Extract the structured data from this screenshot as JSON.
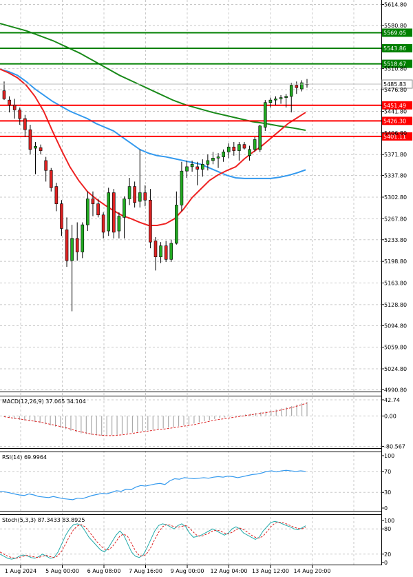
{
  "chart_data": [
    {
      "type": "candlestick",
      "x_ticks": [
        "1 Aug 2024",
        "5 Aug 00:00",
        "6 Aug 08:00",
        "7 Aug 16:00",
        "9 Aug 00:00",
        "12 Aug 04:00",
        "13 Aug 12:00",
        "14 Aug 20:00"
      ],
      "y_ticks": [
        5614.8,
        5580.8,
        5510.8,
        5476.8,
        5441.8,
        5406.8,
        5371.8,
        5337.8,
        5302.8,
        5267.8,
        5233.8,
        5198.8,
        5163.8,
        5128.8,
        5094.8,
        5059.8,
        5024.8,
        4990.8
      ],
      "ylim": [
        4988,
        5622
      ],
      "grid": true,
      "last_price": 5485.83,
      "levels": [
        {
          "value": 5569.05,
          "label": "5569.05",
          "color": "#008000"
        },
        {
          "value": 5543.86,
          "label": "5543.86",
          "color": "#008000"
        },
        {
          "value": 5518.67,
          "label": "5518.67",
          "color": "#008000"
        },
        {
          "value": 5451.49,
          "label": "5451.49",
          "color": "#ff0000"
        },
        {
          "value": 5426.3,
          "label": "5426.30",
          "color": "#ff0000"
        },
        {
          "value": 5401.11,
          "label": "5401.11",
          "color": "#ff0000"
        }
      ],
      "candles": [
        [
          5475,
          5490,
          5460,
          5462
        ],
        [
          5460,
          5466,
          5440,
          5452
        ],
        [
          5452,
          5462,
          5430,
          5444
        ],
        [
          5444,
          5448,
          5420,
          5430
        ],
        [
          5430,
          5436,
          5400,
          5412
        ],
        [
          5412,
          5420,
          5372,
          5380
        ],
        [
          5382,
          5392,
          5340,
          5385
        ],
        [
          5383,
          5388,
          5372,
          5378
        ],
        [
          5362,
          5368,
          5328,
          5346
        ],
        [
          5346,
          5350,
          5312,
          5318
        ],
        [
          5320,
          5326,
          5280,
          5292
        ],
        [
          5292,
          5298,
          5240,
          5252
        ],
        [
          5250,
          5270,
          5190,
          5200
        ],
        [
          5200,
          5258,
          5118,
          5236
        ],
        [
          5236,
          5262,
          5200,
          5214
        ],
        [
          5214,
          5262,
          5204,
          5258
        ],
        [
          5258,
          5312,
          5248,
          5300
        ],
        [
          5300,
          5312,
          5272,
          5292
        ],
        [
          5292,
          5300,
          5270,
          5274
        ],
        [
          5274,
          5278,
          5236,
          5246
        ],
        [
          5248,
          5318,
          5240,
          5310
        ],
        [
          5310,
          5316,
          5236,
          5246
        ],
        [
          5248,
          5278,
          5236,
          5272
        ],
        [
          5270,
          5304,
          5236,
          5300
        ],
        [
          5300,
          5334,
          5290,
          5320
        ],
        [
          5320,
          5328,
          5286,
          5294
        ],
        [
          5296,
          5380,
          5286,
          5310
        ],
        [
          5310,
          5322,
          5288,
          5298
        ],
        [
          5298,
          5316,
          5220,
          5230
        ],
        [
          5232,
          5238,
          5184,
          5206
        ],
        [
          5206,
          5230,
          5196,
          5224
        ],
        [
          5224,
          5232,
          5198,
          5202
        ],
        [
          5202,
          5234,
          5198,
          5228
        ],
        [
          5228,
          5312,
          5226,
          5290
        ],
        [
          5290,
          5360,
          5280,
          5345
        ],
        [
          5345,
          5362,
          5334,
          5352
        ],
        [
          5352,
          5362,
          5344,
          5356
        ],
        [
          5352,
          5360,
          5322,
          5348
        ],
        [
          5348,
          5364,
          5336,
          5356
        ],
        [
          5356,
          5372,
          5346,
          5362
        ],
        [
          5362,
          5376,
          5356,
          5366
        ],
        [
          5366,
          5374,
          5350,
          5368
        ],
        [
          5368,
          5380,
          5360,
          5376
        ],
        [
          5376,
          5390,
          5366,
          5384
        ],
        [
          5384,
          5392,
          5370,
          5378
        ],
        [
          5378,
          5392,
          5362,
          5388
        ],
        [
          5388,
          5392,
          5380,
          5382
        ],
        [
          5370,
          5386,
          5362,
          5380
        ],
        [
          5380,
          5400,
          5376,
          5396
        ],
        [
          5380,
          5420,
          5376,
          5418
        ],
        [
          5416,
          5460,
          5410,
          5456
        ],
        [
          5456,
          5464,
          5448,
          5460
        ],
        [
          5460,
          5466,
          5452,
          5462
        ],
        [
          5462,
          5468,
          5454,
          5464
        ],
        [
          5464,
          5470,
          5448,
          5466
        ],
        [
          5466,
          5488,
          5440,
          5484
        ],
        [
          5484,
          5490,
          5470,
          5480
        ],
        [
          5478,
          5492,
          5474,
          5488
        ],
        [
          5486,
          5494,
          5480,
          5485.83
        ]
      ],
      "ma_red": [
        5510,
        5504,
        5496,
        5484,
        5466,
        5442,
        5410,
        5380,
        5352,
        5330,
        5312,
        5300,
        5290,
        5281,
        5273,
        5268,
        5262,
        5257,
        5257,
        5260,
        5268,
        5283,
        5302,
        5316,
        5330,
        5339,
        5346,
        5352,
        5365,
        5376,
        5386,
        5398,
        5410,
        5422,
        5431,
        5440
      ],
      "ma_blue": [
        5510,
        5506,
        5500,
        5490,
        5478,
        5468,
        5458,
        5450,
        5442,
        5436,
        5430,
        5422,
        5416,
        5410,
        5400,
        5390,
        5380,
        5374,
        5370,
        5368,
        5365,
        5362,
        5359,
        5356,
        5350,
        5344,
        5338,
        5334,
        5333,
        5333,
        5333,
        5333,
        5335,
        5338,
        5342,
        5347
      ],
      "ma_green": [
        5584,
        5578,
        5572,
        5564,
        5556,
        5546,
        5536,
        5524,
        5512,
        5500,
        5490,
        5480,
        5470,
        5460,
        5452,
        5446,
        5440,
        5435,
        5430,
        5425,
        5422,
        5418,
        5415,
        5411
      ]
    },
    {
      "type": "bar",
      "title": "MACD(12,26,9) 37.065 34.104",
      "y_ticks": [
        42.74,
        0.0,
        -80.567
      ],
      "ylim": [
        -85,
        50
      ],
      "grid": true,
      "hist": [
        -3,
        -5,
        -8,
        -10,
        -12,
        -14,
        -16,
        -19,
        -22,
        -25,
        -28,
        -31,
        -35,
        -39,
        -43,
        -46,
        -48,
        -50,
        -51,
        -52,
        -52,
        -51,
        -50,
        -48,
        -46,
        -44,
        -42,
        -40,
        -38,
        -36,
        -35,
        -33,
        -31,
        -29,
        -27,
        -25,
        -23,
        -20,
        -17,
        -14,
        -11,
        -8,
        -6,
        -4,
        -2,
        0,
        2,
        4,
        6,
        8,
        10,
        12,
        14,
        17,
        20,
        23,
        26,
        30,
        34,
        37
      ],
      "signal": [
        -2,
        -4,
        -6,
        -8,
        -10,
        -12,
        -14,
        -16,
        -19,
        -22,
        -25,
        -28,
        -31,
        -35,
        -39,
        -42,
        -45,
        -48,
        -50,
        -51,
        -52,
        -52,
        -51,
        -50,
        -48,
        -46,
        -44,
        -42,
        -40,
        -38,
        -36,
        -35,
        -33,
        -31,
        -29,
        -27,
        -25,
        -23,
        -20,
        -17,
        -14,
        -11,
        -9,
        -7,
        -5,
        -3,
        -1,
        1,
        3,
        5,
        7,
        9,
        11,
        13,
        16,
        19,
        22,
        26,
        30,
        34.104
      ]
    },
    {
      "type": "line",
      "title": "RSI(14) 69.9964",
      "y_ticks": [
        100,
        70,
        30,
        0
      ],
      "ylim": [
        0,
        100
      ],
      "grid": true,
      "values": [
        32,
        31,
        29,
        27,
        25,
        24,
        27,
        25,
        22,
        21,
        20,
        22,
        20,
        18,
        17,
        16,
        19,
        18,
        21,
        24,
        26,
        28,
        27,
        30,
        33,
        32,
        36,
        35,
        40,
        43,
        42,
        44,
        46,
        47,
        45,
        52,
        56,
        55,
        58,
        57,
        56,
        57,
        58,
        57,
        59,
        60,
        59,
        61,
        60,
        58,
        60,
        62,
        64,
        65,
        67,
        70,
        71,
        69,
        71,
        72,
        71,
        70,
        71,
        69.9964
      ]
    },
    {
      "type": "line",
      "title": "Stoch(5,3,3) 87.3433 83.8925",
      "y_ticks": [
        100,
        80,
        20,
        0
      ],
      "ylim": [
        0,
        100
      ],
      "grid": true,
      "k": [
        20,
        15,
        10,
        8,
        10,
        15,
        18,
        16,
        12,
        10,
        14,
        20,
        15,
        10,
        12,
        25,
        45,
        65,
        80,
        90,
        92,
        88,
        75,
        60,
        50,
        40,
        30,
        25,
        35,
        50,
        65,
        75,
        65,
        45,
        25,
        15,
        12,
        18,
        35,
        55,
        75,
        88,
        92,
        90,
        85,
        80,
        88,
        92,
        85,
        70,
        60,
        62,
        65,
        70,
        75,
        80,
        75,
        70,
        65,
        70,
        80,
        85,
        80,
        70,
        65,
        60,
        55,
        60,
        75,
        85,
        95,
        98,
        96,
        92,
        88,
        85,
        80,
        78,
        82,
        87.3433
      ],
      "d": [
        25,
        20,
        15,
        12,
        10,
        12,
        15,
        17,
        15,
        13,
        12,
        15,
        17,
        14,
        12,
        16,
        28,
        45,
        63,
        78,
        87,
        90,
        85,
        74,
        62,
        50,
        40,
        32,
        30,
        37,
        50,
        63,
        68,
        62,
        45,
        28,
        17,
        15,
        22,
        36,
        55,
        72,
        85,
        90,
        89,
        85,
        84,
        86,
        88,
        82,
        72,
        64,
        62,
        66,
        70,
        75,
        77,
        75,
        70,
        68,
        72,
        78,
        82,
        78,
        72,
        65,
        60,
        58,
        63,
        73,
        85,
        93,
        96,
        95,
        92,
        88,
        84,
        81,
        80,
        83.8925
      ]
    }
  ]
}
